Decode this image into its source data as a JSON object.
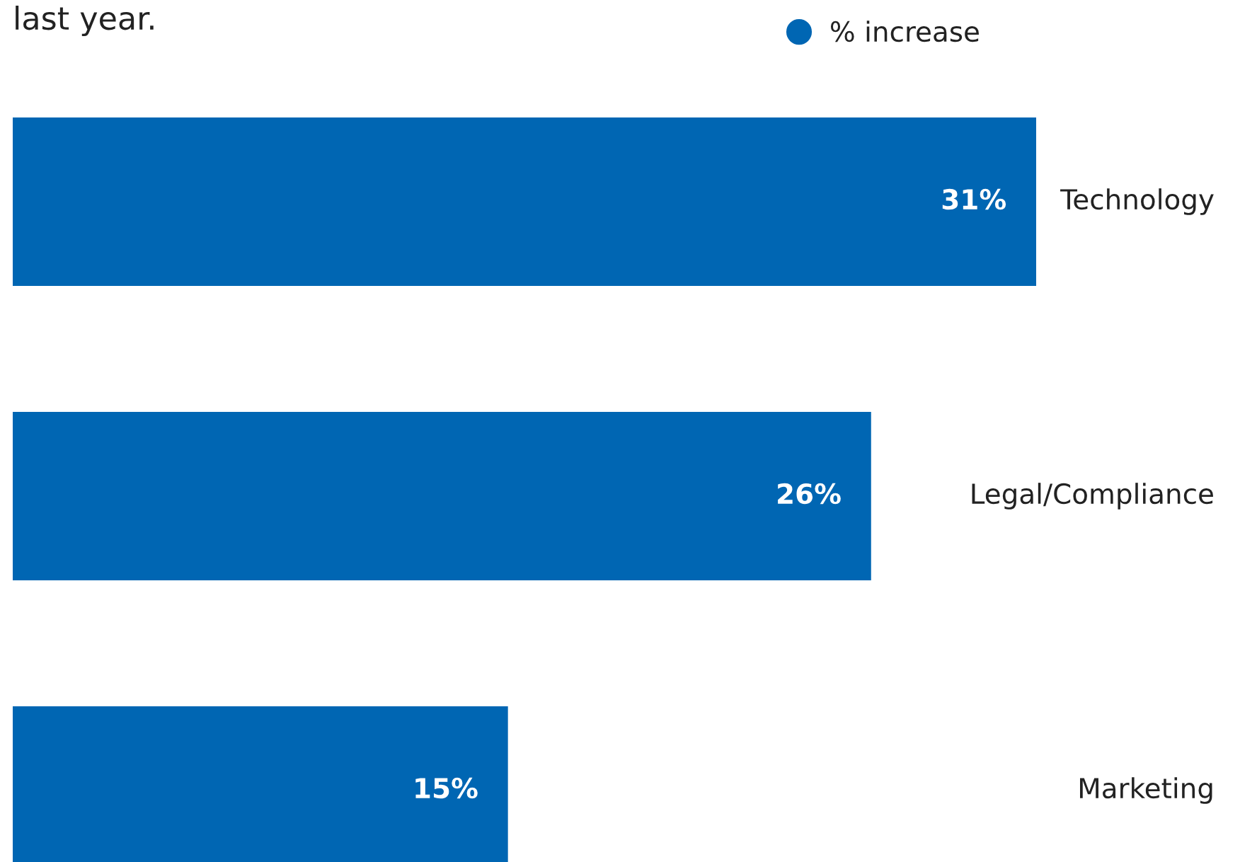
{
  "chart_data": {
    "type": "bar",
    "orientation": "horizontal",
    "title": "last year.",
    "categories": [
      "Technology",
      "Legal/Compliance",
      "Marketing"
    ],
    "series": [
      {
        "name": "% increase",
        "color": "#0066b3",
        "values": [
          31,
          26,
          15
        ],
        "value_labels": [
          "31%",
          "26%",
          "15%"
        ]
      }
    ],
    "legend": "top right"
  }
}
